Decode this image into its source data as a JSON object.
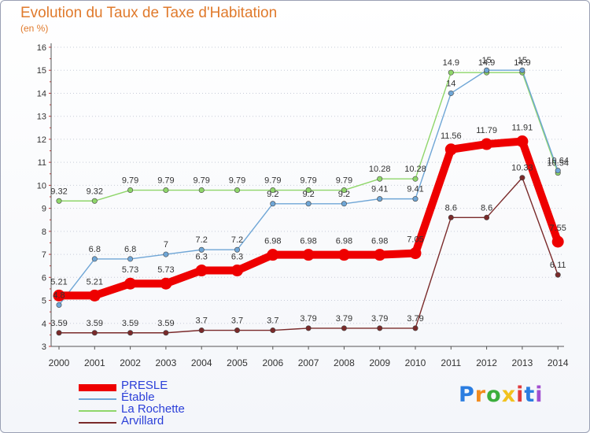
{
  "title": "Evolution du Taux de Taxe d'Habitation",
  "subtitle": "(en %)",
  "logo": {
    "letters": [
      "P",
      "r",
      "o",
      "x",
      "i",
      "t",
      "i"
    ],
    "colors": [
      "#2b7de0",
      "#f28c1e",
      "#3cae3c",
      "#f2c21e",
      "#e03c3c",
      "#2b7de0",
      "#a24fd0"
    ]
  },
  "chart_data": {
    "type": "line",
    "title": "Evolution du Taux de Taxe d'Habitation",
    "ylabel": "(en %)",
    "xlabel": "",
    "x": [
      "2000",
      "2001",
      "2002",
      "2003",
      "2004",
      "2005",
      "2006",
      "2007",
      "2008",
      "2009",
      "2010",
      "2011",
      "2012",
      "2013",
      "2014"
    ],
    "ylim": [
      3,
      16
    ],
    "yticks": [
      "3",
      "4",
      "5",
      "6",
      "7",
      "8",
      "9",
      "10",
      "11",
      "12",
      "13",
      "14",
      "15",
      "16"
    ],
    "grid": "horizontal-dotted",
    "legend_position": "bottom-left",
    "series": [
      {
        "name": "PRESLE",
        "color": "#ee0000",
        "values": [
          5.21,
          5.21,
          5.73,
          5.73,
          6.3,
          6.3,
          6.98,
          6.98,
          6.98,
          6.98,
          7.05,
          11.56,
          11.79,
          11.91,
          7.55
        ],
        "labels": [
          "5.21",
          "5.21",
          "5.73",
          "5.73",
          "6.3",
          "6.3",
          "6.98",
          "6.98",
          "6.98",
          "6.98",
          "7.05",
          "11.56",
          "11.79",
          "11.91",
          "7.55"
        ]
      },
      {
        "name": "Étable",
        "color": "#6fa6d6",
        "values": [
          4.8,
          6.8,
          6.8,
          7,
          7.2,
          7.2,
          9.2,
          9.2,
          9.2,
          9.41,
          9.41,
          14,
          15,
          15,
          10.64
        ],
        "labels": [
          "4.8",
          "6.8",
          "6.8",
          "7",
          "7.2",
          "7.2",
          "9.2",
          "9.2",
          "9.2",
          "9.41",
          "9.41",
          "14",
          "15",
          "15",
          "10.64"
        ]
      },
      {
        "name": "La Rochette",
        "color": "#8fd66a",
        "values": [
          9.32,
          9.32,
          9.79,
          9.79,
          9.79,
          9.79,
          9.79,
          9.79,
          9.79,
          10.28,
          10.28,
          14.9,
          14.9,
          14.9,
          10.54
        ],
        "labels": [
          "9.32",
          "9.32",
          "9.79",
          "9.79",
          "9.79",
          "9.79",
          "9.79",
          "9.79",
          "9.79",
          "10.28",
          "10.28",
          "14.9",
          "14.9",
          "14.9",
          "10.54"
        ]
      },
      {
        "name": "Arvillard",
        "color": "#7a2a2a",
        "values": [
          3.59,
          3.59,
          3.59,
          3.59,
          3.7,
          3.7,
          3.7,
          3.79,
          3.79,
          3.79,
          3.79,
          8.6,
          8.6,
          10.33,
          6.11
        ],
        "labels": [
          "3.59",
          "3.59",
          "3.59",
          "3.59",
          "3.7",
          "3.7",
          "3.7",
          "3.79",
          "3.79",
          "3.79",
          "3.79",
          "8.6",
          "8.6",
          "10.33",
          "6.11"
        ]
      }
    ]
  }
}
